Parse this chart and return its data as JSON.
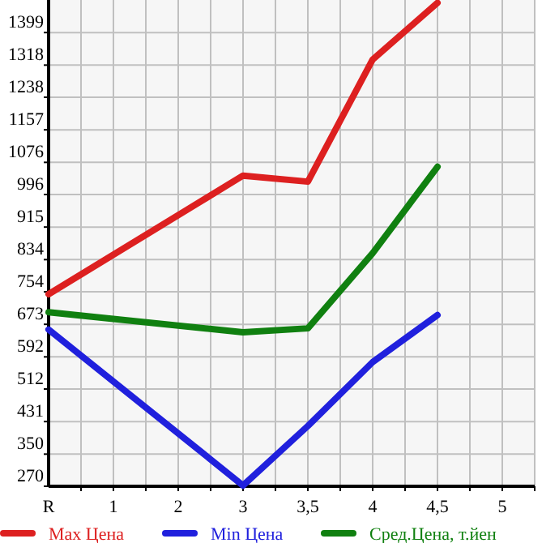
{
  "chart_data": {
    "type": "line",
    "categories": [
      "R",
      "1",
      "2",
      "3",
      "3,5",
      "4",
      "4,5",
      "5"
    ],
    "ylim": [
      270,
      1480
    ],
    "yticks": [
      270,
      350,
      431,
      512,
      592,
      673,
      754,
      834,
      915,
      996,
      1076,
      1157,
      1238,
      1318,
      1399
    ],
    "grid": true,
    "legend": "bottom",
    "marker": "none",
    "line_style": "solid",
    "series": [
      {
        "name": "Max Цена",
        "color": "#dd2020",
        "values": [
          748,
          null,
          null,
          1043,
          1028,
          1332,
          1473,
          null
        ]
      },
      {
        "name": "Min Цена",
        "color": "#2020dd",
        "values": [
          660,
          null,
          null,
          272,
          420,
          579,
          696,
          null
        ]
      },
      {
        "name": "Сред.Цена, т.йен",
        "color": "#108010",
        "values": [
          703,
          null,
          null,
          653,
          663,
          850,
          1065,
          null
        ]
      }
    ]
  }
}
